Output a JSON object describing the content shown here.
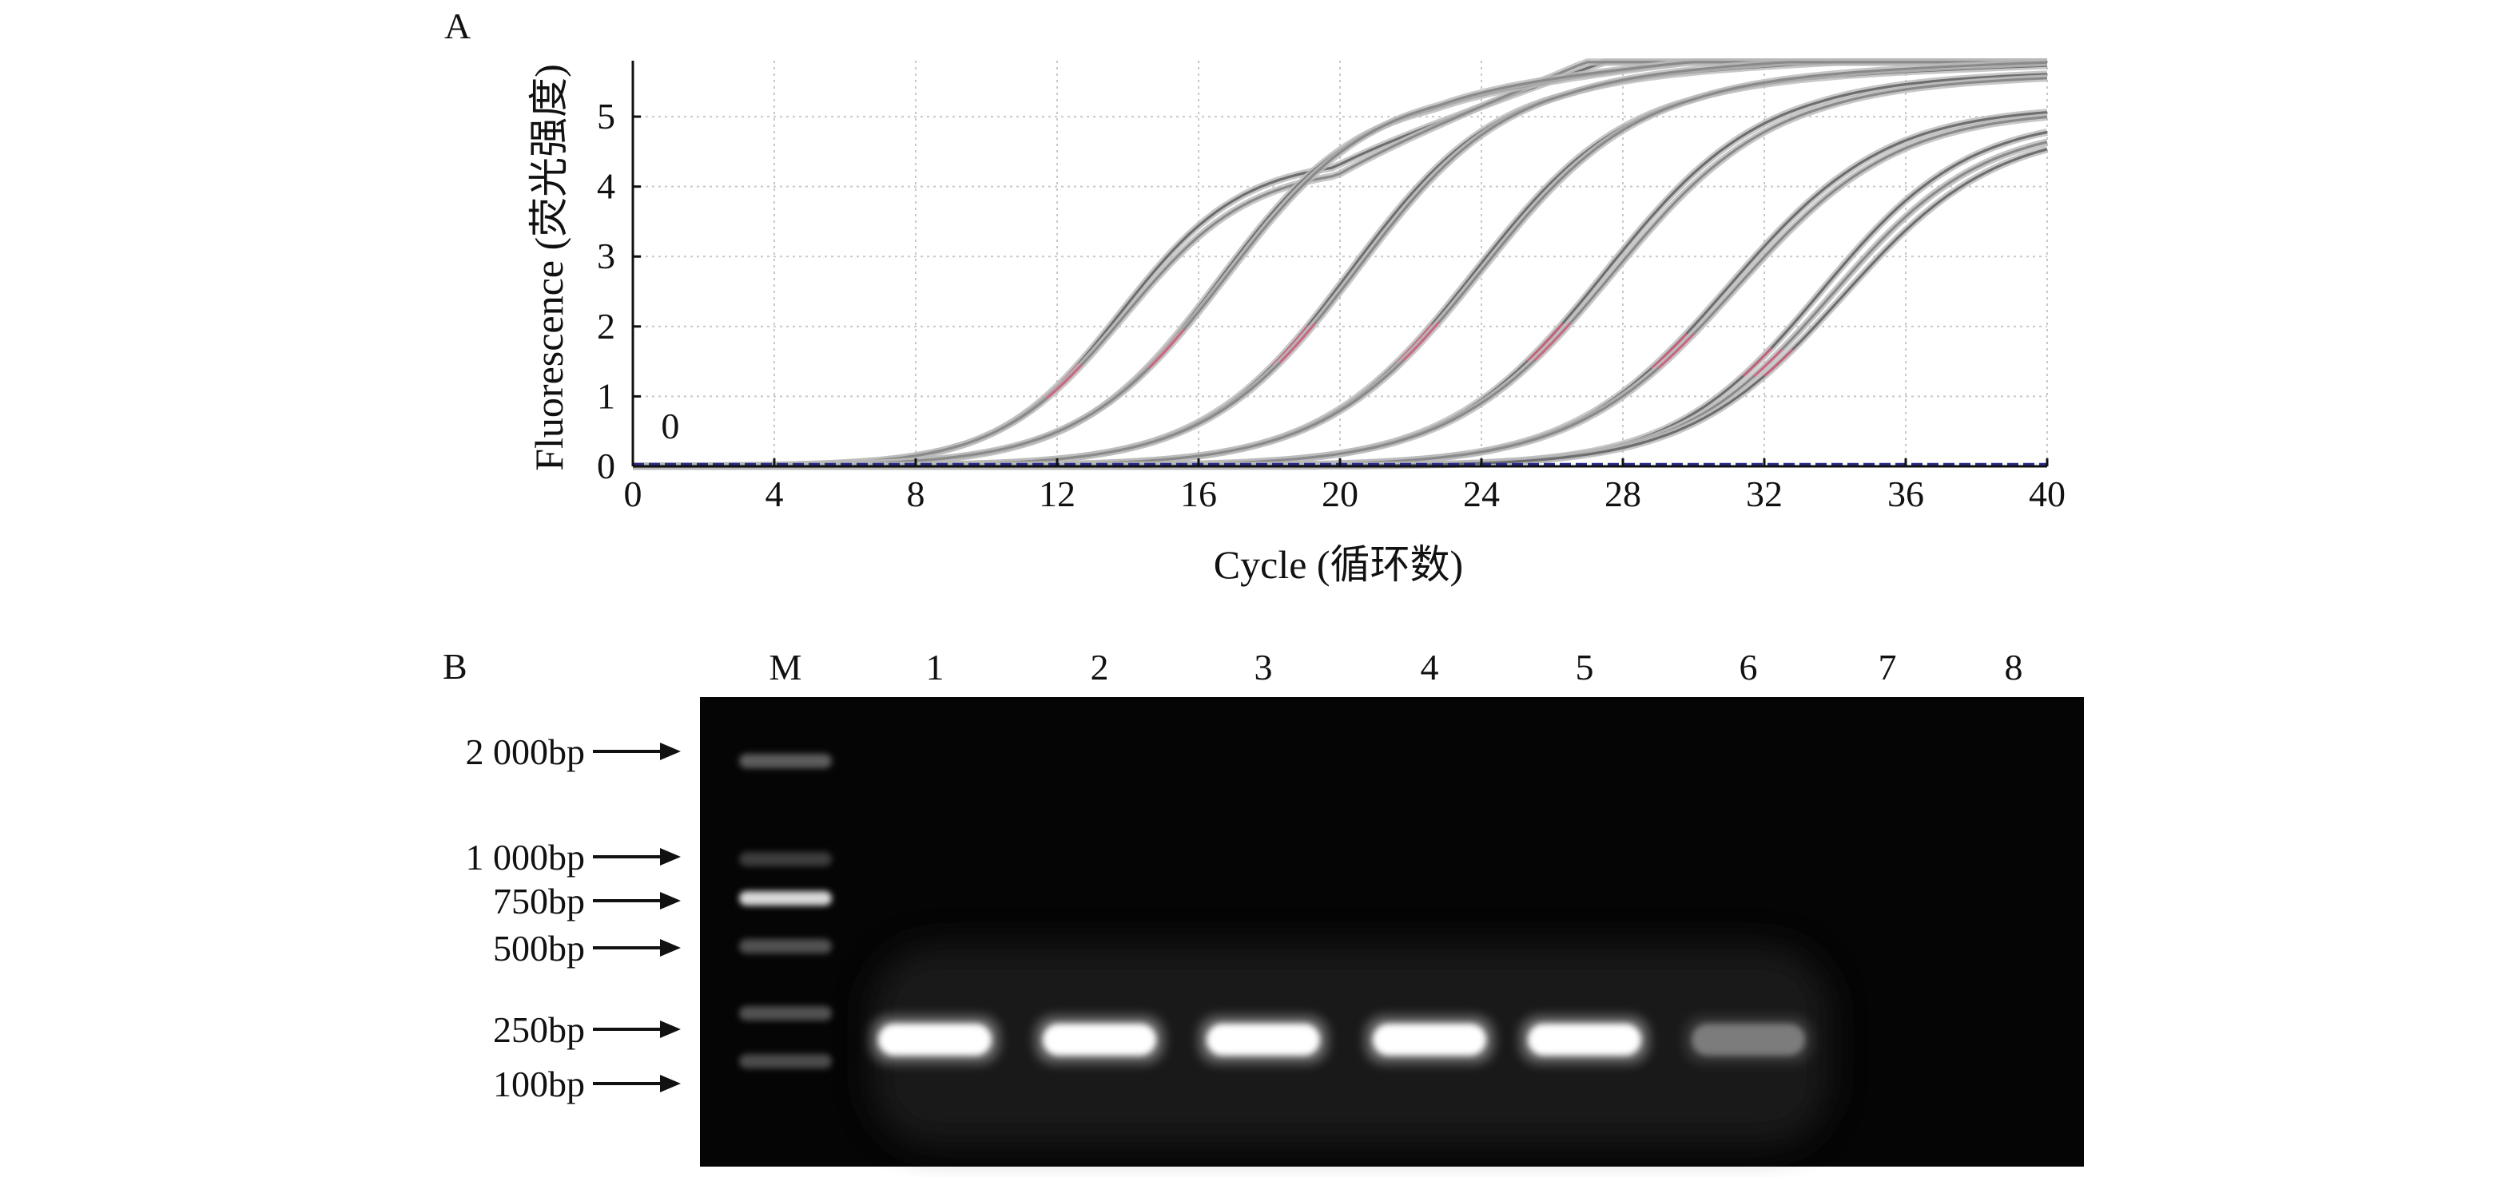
{
  "panels": {
    "a_label": "A",
    "b_label": "B"
  },
  "chart_data": [
    {
      "type": "line",
      "xlabel": "Cycle (循环数)",
      "ylabel": "Fluorescence (荧光强度)",
      "xlim": [
        0,
        40
      ],
      "ylim": [
        0,
        5.8
      ],
      "xticks": [
        0,
        4,
        8,
        12,
        16,
        20,
        24,
        28,
        32,
        36,
        40
      ],
      "yticks": [
        0,
        1,
        2,
        3,
        4,
        5
      ],
      "grid": true,
      "annotations": [
        {
          "text": "0",
          "x": 0.8,
          "y": 0.4
        }
      ],
      "series": [
        {
          "midpoint": 13.8,
          "slope": 0.58,
          "plateau": 4.4,
          "drift": 0.03
        },
        {
          "midpoint": 13.9,
          "slope": 0.56,
          "plateau": 4.3,
          "drift": 0.035
        },
        {
          "midpoint": 16.6,
          "slope": 0.5,
          "plateau": 5.35,
          "drift": 0.01
        },
        {
          "midpoint": 16.8,
          "slope": 0.48,
          "plateau": 5.45,
          "drift": 0.008
        },
        {
          "midpoint": 20.3,
          "slope": 0.48,
          "plateau": 5.6,
          "drift": 0.004
        },
        {
          "midpoint": 20.5,
          "slope": 0.47,
          "plateau": 5.65,
          "drift": 0.004
        },
        {
          "midpoint": 23.8,
          "slope": 0.46,
          "plateau": 5.55,
          "drift": 0.003
        },
        {
          "midpoint": 24.0,
          "slope": 0.45,
          "plateau": 5.6,
          "drift": 0.003
        },
        {
          "midpoint": 27.5,
          "slope": 0.45,
          "plateau": 5.55,
          "drift": 0.002
        },
        {
          "midpoint": 27.7,
          "slope": 0.44,
          "plateau": 5.5,
          "drift": 0.002
        },
        {
          "midpoint": 31.0,
          "slope": 0.45,
          "plateau": 5.15,
          "drift": 0.0
        },
        {
          "midpoint": 31.2,
          "slope": 0.44,
          "plateau": 5.1,
          "drift": 0.0
        },
        {
          "midpoint": 33.6,
          "slope": 0.48,
          "plateau": 5.0,
          "drift": 0.0
        },
        {
          "midpoint": 33.9,
          "slope": 0.47,
          "plateau": 4.9,
          "drift": 0.0
        },
        {
          "midpoint": 34.2,
          "slope": 0.46,
          "plateau": 4.85,
          "drift": 0.0
        }
      ],
      "baseline": {
        "y": 0.02,
        "style": "dashed",
        "color": "#2a2a8a"
      }
    },
    {
      "type": "gel",
      "lanes": [
        "M",
        "1",
        "2",
        "3",
        "4",
        "5",
        "6",
        "7",
        "8"
      ],
      "markers": [
        "2 000bp",
        "1 000bp",
        "750bp",
        "500bp",
        "250bp",
        "100bp"
      ],
      "band_intensity": [
        null,
        1.0,
        1.0,
        1.0,
        1.0,
        1.0,
        0.35,
        0.0,
        0.0
      ]
    }
  ],
  "colors": {
    "curve": "#6e6e6e",
    "curve_light": "#b9b9b9",
    "highlight": "#d9607e",
    "baseline": "#2a2a8a",
    "grid": "#c8c8c8",
    "gel_bg": "#050505",
    "band": "#ffffff"
  }
}
